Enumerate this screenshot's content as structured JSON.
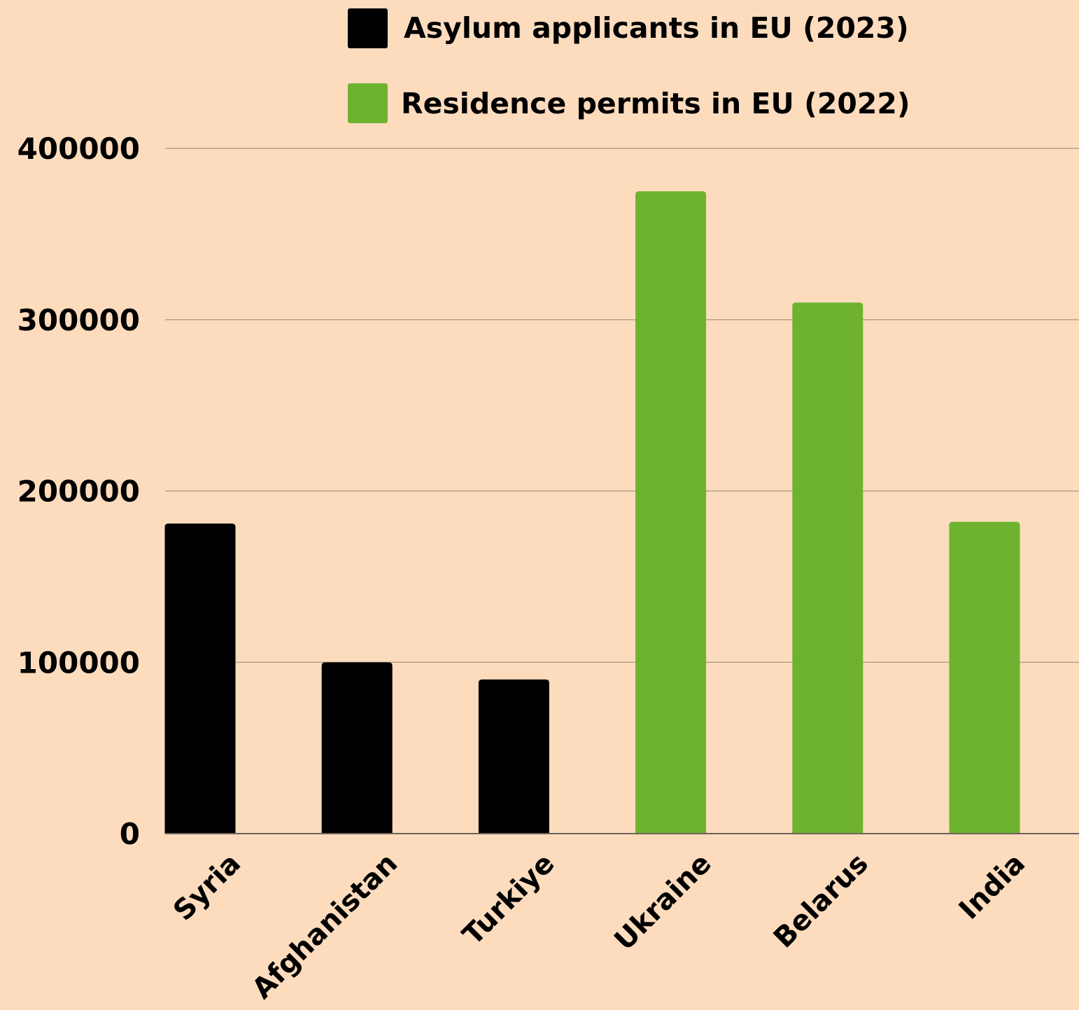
{
  "chart_data": {
    "type": "bar",
    "categories": [
      "Syria",
      "Afghanistan",
      "Turkiye",
      "Ukraine",
      "Belarus",
      "India"
    ],
    "series": [
      {
        "name": "Asylum applicants in EU (2023)",
        "color": "#000000",
        "values": [
          181000,
          100000,
          90000,
          null,
          null,
          null
        ]
      },
      {
        "name": "Residence permits in EU (2022)",
        "color": "#6DB32F",
        "values": [
          null,
          null,
          null,
          375000,
          310000,
          182000
        ]
      }
    ],
    "ylim": [
      0,
      400000
    ],
    "yticks": [
      0,
      100000,
      200000,
      300000,
      400000
    ],
    "grid": true,
    "legend_position": "top",
    "background": "#FDDCBE",
    "gridline_color": "#B8A08C"
  }
}
